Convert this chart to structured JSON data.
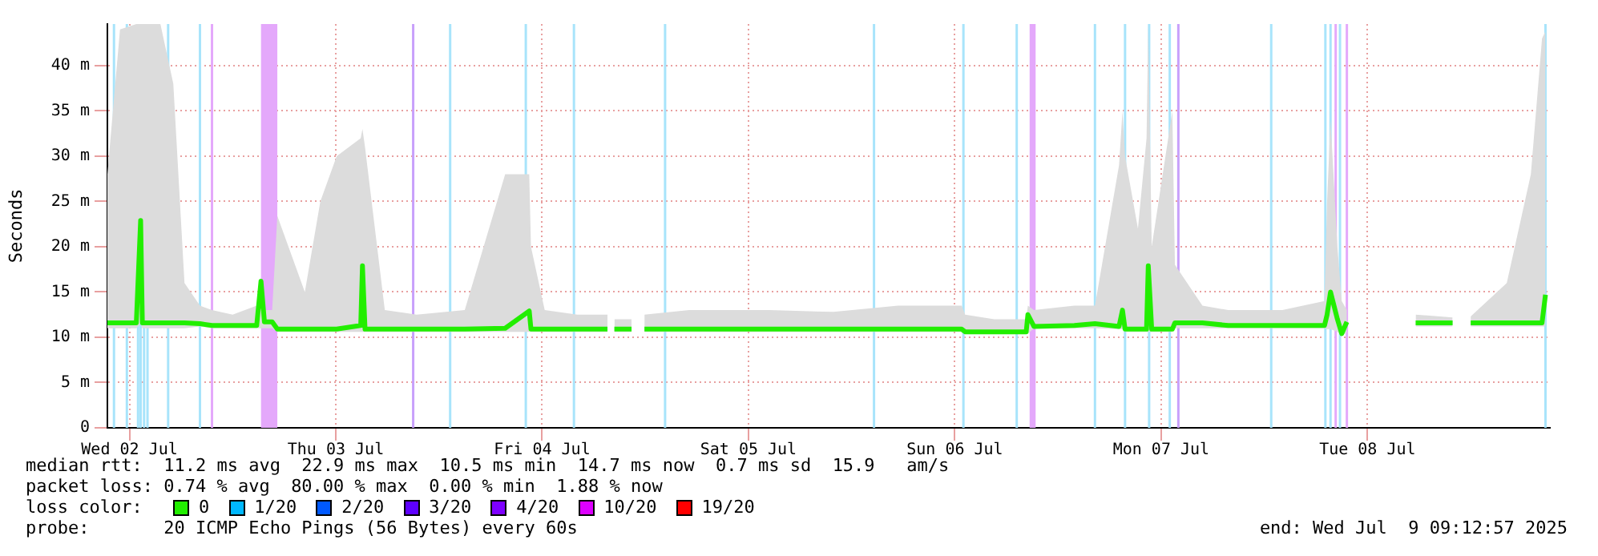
{
  "chart_data": {
    "type": "line",
    "ylabel": "Seconds",
    "xlim": [
      "2025-07-02T09:26",
      "2025-07-09T09:13"
    ],
    "ylim": [
      0,
      44.6
    ],
    "xticks": [
      {
        "value": "2025-07-02T12:00",
        "label": "Wed 02 Jul"
      },
      {
        "value": "2025-07-03T12:00",
        "label": "Thu 03 Jul"
      },
      {
        "value": "2025-07-04T12:00",
        "label": "Fri 04 Jul"
      },
      {
        "value": "2025-07-05T12:00",
        "label": "Sat 05 Jul"
      },
      {
        "value": "2025-07-06T12:00",
        "label": "Sun 06 Jul"
      },
      {
        "value": "2025-07-07T12:00",
        "label": "Mon 07 Jul"
      },
      {
        "value": "2025-07-08T12:00",
        "label": "Tue 08 Jul"
      }
    ],
    "yticks": [
      {
        "value": 0,
        "label": "0"
      },
      {
        "value": 5,
        "label": "5 m"
      },
      {
        "value": 10,
        "label": "10 m"
      },
      {
        "value": 15,
        "label": "15 m"
      },
      {
        "value": 20,
        "label": "20 m"
      },
      {
        "value": 25,
        "label": "25 m"
      },
      {
        "value": 30,
        "label": "30 m"
      },
      {
        "value": 35,
        "label": "35 m"
      },
      {
        "value": 40,
        "label": "40 m"
      }
    ],
    "grid": true,
    "legend": false,
    "series": [
      {
        "color": "#22ee00",
        "x": [
          "2025-07-02T09:26",
          "2025-07-02T10:54",
          "2025-07-02T12:48",
          "2025-07-02T13:18",
          "2025-07-02T13:30",
          "2025-07-02T15:36",
          "2025-07-02T17:06",
          "2025-07-02T18:24",
          "2025-07-02T20:12",
          "2025-07-02T21:36",
          "2025-07-03T00:00",
          "2025-07-03T02:48",
          "2025-07-03T03:18",
          "2025-07-03T03:42",
          "2025-07-03T04:36",
          "2025-07-03T05:12",
          "2025-07-03T08:24",
          "2025-07-03T10:12",
          "2025-07-03T12:06",
          "2025-07-03T14:54",
          "2025-07-03T15:06",
          "2025-07-03T15:24",
          "2025-07-03T17:42",
          "2025-07-03T21:24",
          "2025-07-04T03:00",
          "2025-07-04T07:42",
          "2025-07-04T10:30",
          "2025-07-04T10:42",
          "2025-07-04T12:18",
          "2025-07-04T16:06",
          "2025-07-04T19:36",
          "2025-07-04T20:00",
          "2025-07-04T20:24",
          "2025-07-04T22:24",
          "2025-07-04T22:48",
          "2025-07-04T23:54",
          "2025-07-05T05:06",
          "2025-07-05T14:24",
          "2025-07-05T21:54",
          "2025-07-06T05:24",
          "2025-07-06T12:48",
          "2025-07-06T13:12",
          "2025-07-06T16:36",
          "2025-07-06T20:18",
          "2025-07-06T20:30",
          "2025-07-06T21:12",
          "2025-07-07T01:54",
          "2025-07-07T04:18",
          "2025-07-07T07:06",
          "2025-07-07T07:30",
          "2025-07-07T07:48",
          "2025-07-07T09:18",
          "2025-07-07T10:18",
          "2025-07-07T10:30",
          "2025-07-07T10:54",
          "2025-07-07T13:18",
          "2025-07-07T13:36",
          "2025-07-07T16:48",
          "2025-07-07T19:48",
          "2025-07-08T02:06",
          "2025-07-08T07:00",
          "2025-07-08T07:18",
          "2025-07-08T07:42",
          "2025-07-08T08:30",
          "2025-07-08T09:00",
          "2025-07-08T09:36",
          "2025-07-08T09:54",
          "2025-07-08T17:36",
          "2025-07-08T21:54",
          "2025-07-08T22:30",
          "2025-07-09T00:00",
          "2025-07-09T04:12",
          "2025-07-09T07:00",
          "2025-07-09T08:18",
          "2025-07-09T08:42"
        ],
        "values": [
          11.6,
          11.6,
          11.6,
          22.9,
          11.6,
          11.6,
          11.6,
          11.6,
          11.5,
          11.3,
          11.3,
          11.3,
          16.2,
          11.7,
          11.7,
          10.9,
          10.9,
          10.9,
          10.9,
          11.3,
          17.9,
          10.9,
          10.9,
          10.9,
          10.9,
          11,
          12.9,
          10.9,
          10.9,
          10.9,
          10.9,
          null,
          10.9,
          10.9,
          null,
          10.9,
          10.9,
          10.9,
          10.9,
          10.9,
          10.9,
          10.6,
          10.6,
          10.6,
          12.5,
          11.2,
          11.3,
          11.5,
          11.2,
          13.0,
          10.9,
          10.9,
          10.9,
          17.9,
          10.9,
          10.9,
          11.6,
          11.6,
          11.3,
          11.3,
          11.3,
          12.5,
          15.0,
          12.0,
          10.4,
          11.7,
          null,
          11.6,
          11.6,
          null,
          11.6,
          11.6,
          11.6,
          11.6,
          14.7
        ],
        "lower": [
          11,
          11,
          11,
          11.5,
          11,
          11,
          11,
          11,
          11.2,
          11,
          11,
          11,
          11,
          11,
          11,
          10.6,
          10.6,
          10.6,
          10.6,
          10.6,
          10.6,
          10.6,
          10.6,
          10.6,
          10.6,
          10.6,
          10.6,
          10.6,
          10.6,
          10.6,
          10.6,
          null,
          10.6,
          10.6,
          null,
          10.6,
          10.6,
          10.6,
          10.6,
          10.6,
          10.6,
          10.4,
          10.4,
          10.4,
          10.4,
          11,
          11,
          11,
          10.9,
          10.9,
          10.6,
          10.6,
          10.6,
          10.6,
          10.6,
          10.6,
          11,
          11,
          11,
          11,
          11,
          10.9,
          10.9,
          10.6,
          10.2,
          10.5,
          null,
          11.2,
          11.2,
          null,
          11.2,
          11.2,
          11.2,
          11.2,
          11.2
        ],
        "upper": [
          28,
          44,
          44.6,
          44.6,
          44.6,
          44.6,
          38,
          16,
          13.5,
          13,
          12.5,
          13.5,
          16.5,
          13,
          13,
          23.4,
          15,
          25,
          30,
          32,
          33,
          31,
          13,
          12.5,
          13,
          28,
          28,
          20,
          13,
          12.5,
          12.5,
          null,
          12,
          12,
          null,
          12.5,
          13,
          13,
          12.8,
          13.5,
          13.5,
          12.5,
          12,
          12,
          13.5,
          13,
          13.5,
          13.5,
          29,
          35,
          30,
          22,
          32,
          44.6,
          20,
          35,
          18,
          13.5,
          13,
          13,
          14,
          25,
          34,
          20,
          14,
          13,
          null,
          12.5,
          12.2,
          null,
          12.3,
          16,
          28,
          43,
          43.8
        ]
      }
    ],
    "ref_lines": [
      {
        "axis": "x",
        "value": "2025-07-02T10:12",
        "color": "#a8e4fb"
      },
      {
        "axis": "x",
        "value": "2025-07-02T11:42",
        "color": "#a8e4fb"
      },
      {
        "axis": "x",
        "value": "2025-07-02T13:00",
        "color": "#a8e4fb"
      },
      {
        "axis": "x",
        "value": "2025-07-02T13:18",
        "color": "#a8e4fb"
      },
      {
        "axis": "x",
        "value": "2025-07-02T13:42",
        "color": "#a8e4fb"
      },
      {
        "axis": "x",
        "value": "2025-07-02T14:06",
        "color": "#a8e4fb"
      },
      {
        "axis": "x",
        "value": "2025-07-02T16:30",
        "color": "#a8e4fb"
      },
      {
        "axis": "x",
        "value": "2025-07-02T20:12",
        "color": "#a8e4fb"
      },
      {
        "axis": "x",
        "value": "2025-07-02T21:36",
        "color": "#e4a8fb"
      },
      {
        "axis": "x",
        "value": "2025-07-03T21:00",
        "color": "#c8a0fb"
      },
      {
        "axis": "x",
        "value": "2025-07-04T01:18",
        "color": "#a8e4fb"
      },
      {
        "axis": "x",
        "value": "2025-07-04T10:06",
        "color": "#a8e4fb"
      },
      {
        "axis": "x",
        "value": "2025-07-04T15:42",
        "color": "#a8e4fb"
      },
      {
        "axis": "x",
        "value": "2025-07-05T02:18",
        "color": "#a8e4fb"
      },
      {
        "axis": "x",
        "value": "2025-07-06T02:36",
        "color": "#a8e4fb"
      },
      {
        "axis": "x",
        "value": "2025-07-06T13:00",
        "color": "#a8e4fb"
      },
      {
        "axis": "x",
        "value": "2025-07-06T19:12",
        "color": "#a8e4fb"
      },
      {
        "axis": "x",
        "value": "2025-07-07T04:18",
        "color": "#a8e4fb"
      },
      {
        "axis": "x",
        "value": "2025-07-07T07:48",
        "color": "#a8e4fb"
      },
      {
        "axis": "x",
        "value": "2025-07-07T10:36",
        "color": "#a8e4fb"
      },
      {
        "axis": "x",
        "value": "2025-07-07T13:00",
        "color": "#a8e4fb"
      },
      {
        "axis": "x",
        "value": "2025-07-07T14:00",
        "color": "#c8a0fb"
      },
      {
        "axis": "x",
        "value": "2025-07-08T00:48",
        "color": "#a8e4fb"
      },
      {
        "axis": "x",
        "value": "2025-07-08T07:06",
        "color": "#a8e4fb"
      },
      {
        "axis": "x",
        "value": "2025-07-08T07:42",
        "color": "#a8e4fb"
      },
      {
        "axis": "x",
        "value": "2025-07-08T08:18",
        "color": "#e4a8fb"
      },
      {
        "axis": "x",
        "value": "2025-07-08T08:48",
        "color": "#a8e4fb"
      },
      {
        "axis": "x",
        "value": "2025-07-08T09:36",
        "color": "#e4a8fb"
      },
      {
        "axis": "x",
        "value": "2025-07-09T08:42",
        "color": "#a8e4fb"
      }
    ],
    "bands": [
      {
        "axis": "x",
        "from": "2025-07-03T03:18",
        "to": "2025-07-03T05:12",
        "color": "#e4a8fb"
      },
      {
        "axis": "x",
        "from": "2025-07-06T20:42",
        "to": "2025-07-06T21:24",
        "color": "#e4a8fb"
      }
    ],
    "annotations": [
      "median rtt:  11.2 ms avg  22.9 ms max  10.5 ms min  14.7 ms now  0.7 ms sd  15.9   am/s",
      "packet loss: 0.74 % avg  80.00 % max  0.00 % min  1.88 % now",
      "loss color:",
      "0",
      "1/20",
      "2/20",
      "3/20",
      "4/20",
      "10/20",
      "19/20",
      "probe:       20 ICMP Echo Pings (56 Bytes) every 60s",
      "end: Wed Jul  9 09:12:57 2025"
    ]
  }
}
